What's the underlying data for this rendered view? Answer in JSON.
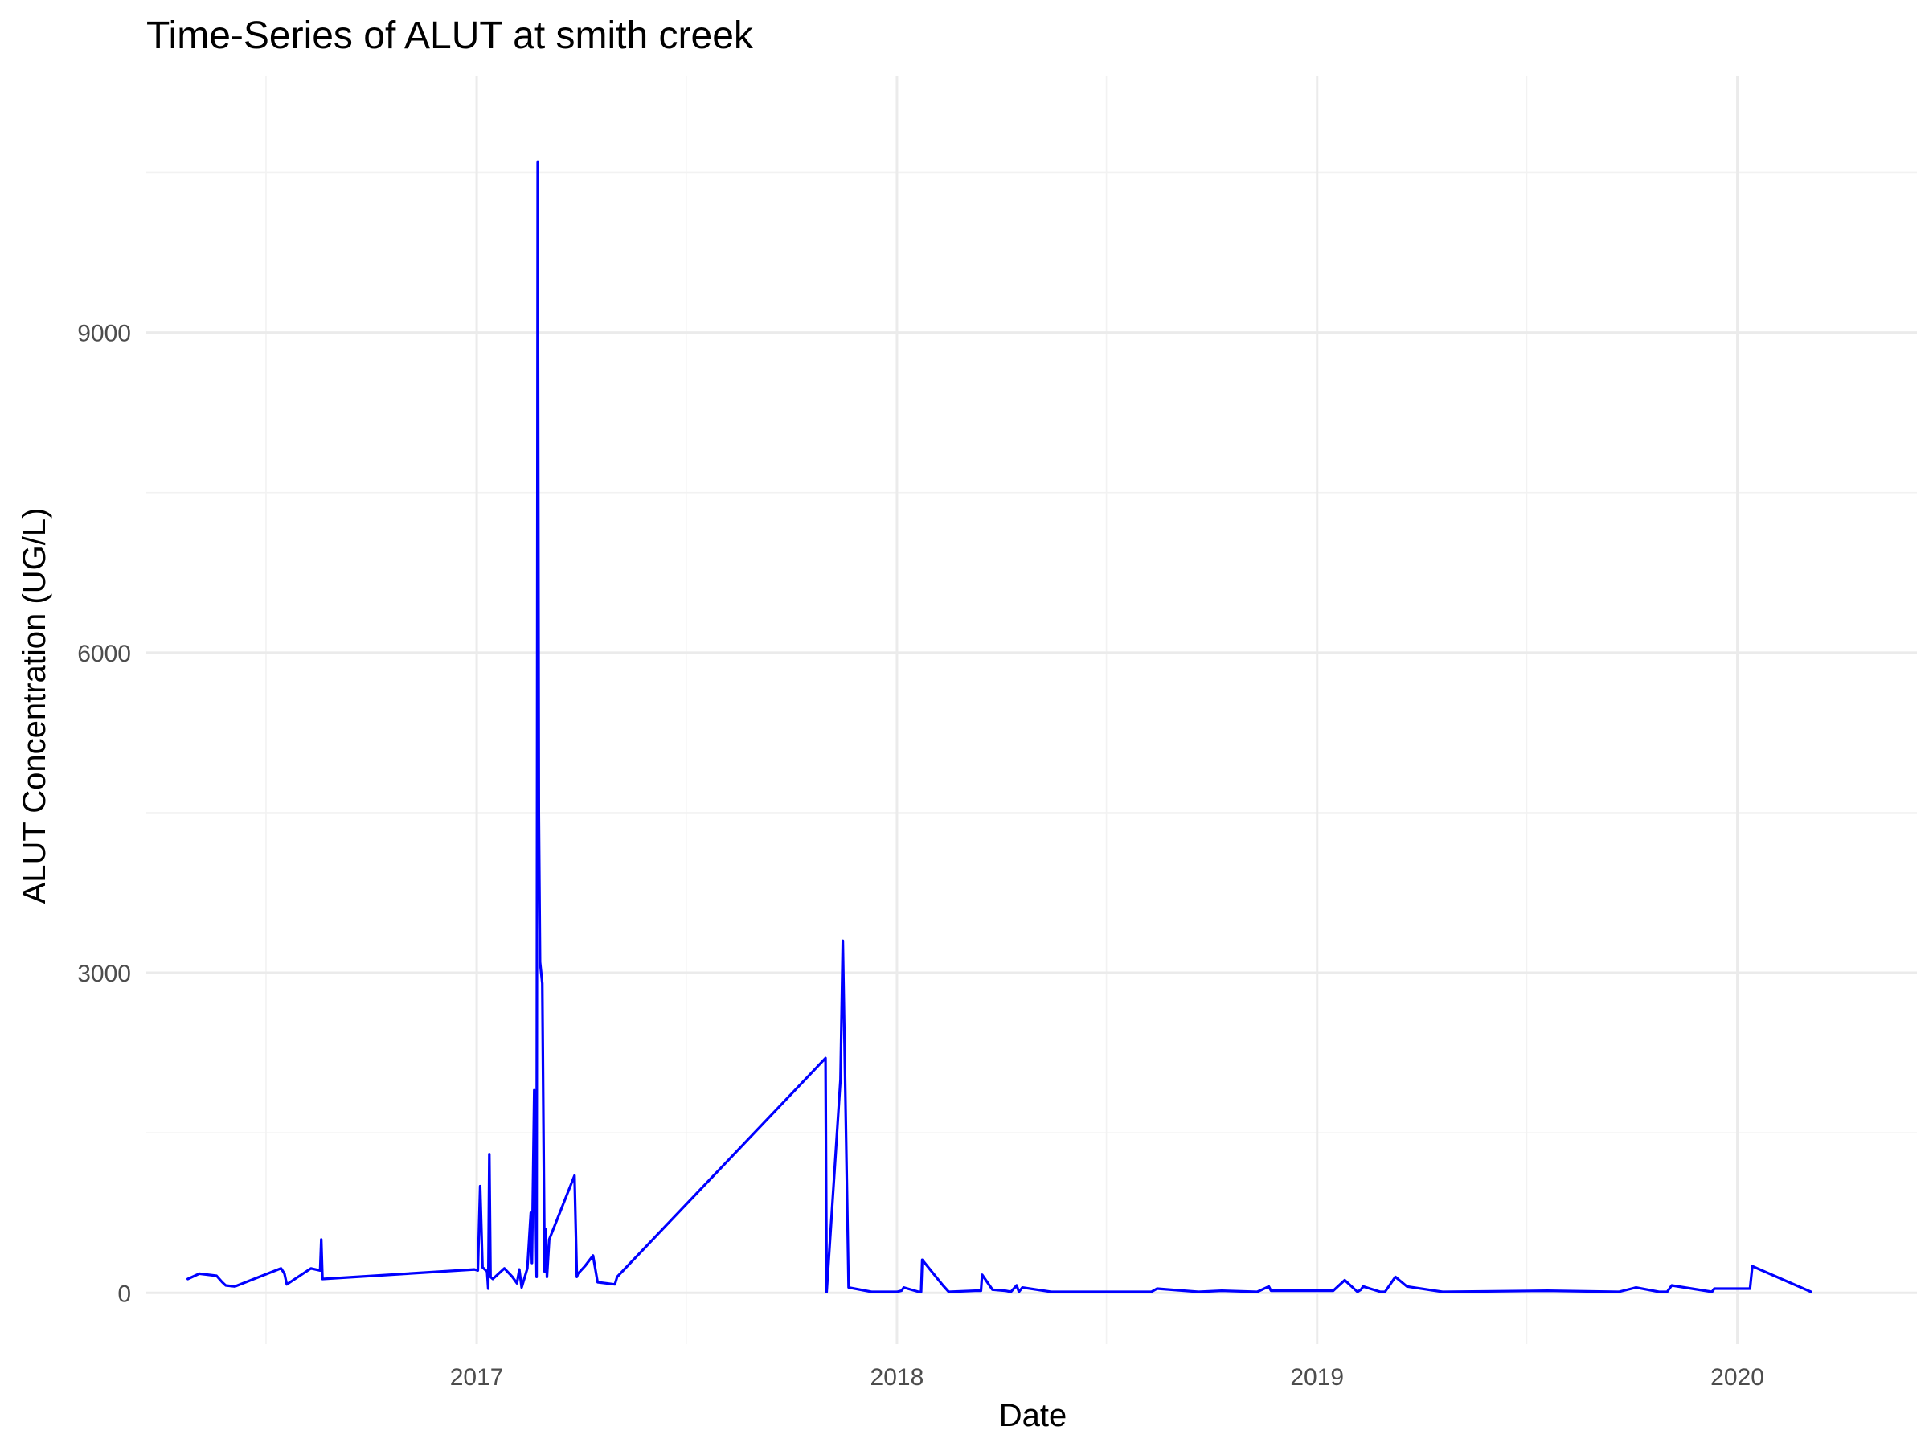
{
  "chart_data": {
    "type": "line",
    "title": "Time-Series of ALUT at smith creek",
    "xlabel": "Date",
    "ylabel": "ALUT Concentration (UG/L)",
    "x_ticks": [
      "2017",
      "2018",
      "2019",
      "2020"
    ],
    "y_ticks": [
      0,
      3000,
      6000,
      9000
    ],
    "xlim": [
      "2016-03-20",
      "2020-06-05"
    ],
    "ylim": [
      -480,
      11400
    ],
    "grid": true,
    "line_color": "#0000ff",
    "series": [
      {
        "x": [
          "2016-04-25",
          "2016-05-05",
          "2016-05-20",
          "2016-05-25",
          "2016-05-28",
          "2016-06-05",
          "2016-07-15",
          "2016-07-18",
          "2016-07-20",
          "2016-08-10",
          "2016-08-18",
          "2016-08-19",
          "2016-08-20",
          "2016-12-30",
          "2017-01-02",
          "2017-01-04",
          "2017-01-06",
          "2017-01-10",
          "2017-01-11",
          "2017-01-12",
          "2017-01-13",
          "2017-01-15",
          "2017-01-25",
          "2017-02-01",
          "2017-02-05",
          "2017-02-07",
          "2017-02-09",
          "2017-02-14",
          "2017-02-17",
          "2017-02-18",
          "2017-02-20",
          "2017-02-22",
          "2017-02-23",
          "2017-02-24",
          "2017-02-25",
          "2017-02-27",
          "2017-03-01",
          "2017-03-02",
          "2017-03-03",
          "2017-03-05",
          "2017-03-27",
          "2017-03-29",
          "2017-03-30",
          "2017-04-05",
          "2017-04-12",
          "2017-04-16",
          "2017-05-01",
          "2017-05-03",
          "2017-10-31",
          "2017-11-01",
          "2017-11-13",
          "2017-11-15",
          "2017-11-20",
          "2017-12-10",
          "2018-01-01",
          "2018-01-05",
          "2018-01-07",
          "2018-01-20",
          "2018-01-22",
          "2018-01-23",
          "2018-02-10",
          "2018-02-15",
          "2018-03-10",
          "2018-03-15",
          "2018-03-16",
          "2018-03-25",
          "2018-04-05",
          "2018-04-10",
          "2018-04-15",
          "2018-04-17",
          "2018-04-20",
          "2018-05-15",
          "2018-06-10",
          "2018-08-10",
          "2018-08-15",
          "2018-09-20",
          "2018-10-10",
          "2018-11-10",
          "2018-11-20",
          "2018-11-22",
          "2019-01-15",
          "2019-01-25",
          "2019-02-05",
          "2019-02-08",
          "2019-02-10",
          "2019-02-25",
          "2019-03-01",
          "2019-03-10",
          "2019-03-20",
          "2019-04-20",
          "2019-07-20",
          "2019-09-20",
          "2019-10-05",
          "2019-10-25",
          "2019-10-28",
          "2019-11-01",
          "2019-11-05",
          "2019-12-10",
          "2019-12-12",
          "2020-01-01",
          "2020-01-12",
          "2020-01-14",
          "2020-03-05"
        ],
        "values": [
          130,
          180,
          160,
          100,
          70,
          60,
          230,
          180,
          80,
          230,
          210,
          500,
          130,
          220,
          210,
          1000,
          240,
          200,
          40,
          1300,
          150,
          130,
          230,
          150,
          90,
          220,
          50,
          230,
          750,
          280,
          1900,
          150,
          10600,
          4500,
          3100,
          2900,
          200,
          600,
          150,
          500,
          1100,
          150,
          180,
          250,
          350,
          100,
          80,
          150,
          2200,
          10,
          2000,
          3300,
          50,
          10,
          10,
          20,
          50,
          10,
          10,
          310,
          70,
          10,
          20,
          20,
          170,
          30,
          20,
          10,
          70,
          10,
          50,
          10,
          10,
          10,
          40,
          10,
          20,
          10,
          60,
          20,
          20,
          120,
          10,
          30,
          60,
          10,
          10,
          150,
          60,
          10,
          20,
          10,
          50,
          10,
          10,
          10,
          70,
          10,
          40,
          40,
          40,
          250,
          10
        ]
      }
    ]
  }
}
